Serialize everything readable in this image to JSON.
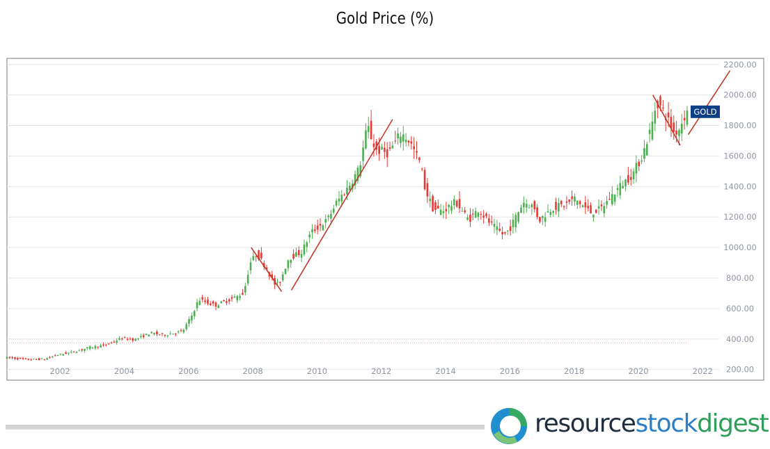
{
  "chart_data": {
    "type": "candlestick",
    "title": "Gold Price (%)",
    "y_ticks": [
      "200.00",
      "400.00",
      "600.00",
      "800.00",
      "1000.00",
      "1200.00",
      "1400.00",
      "1600.00",
      "1800.00",
      "2000.00",
      "2200.00"
    ],
    "y_tick_values": [
      200,
      400,
      600,
      800,
      1000,
      1200,
      1400,
      1600,
      1800,
      2000,
      2200
    ],
    "x_ticks": [
      "2002",
      "2004",
      "2006",
      "2008",
      "2010",
      "2012",
      "2014",
      "2016",
      "2018",
      "2020",
      "2022"
    ],
    "x_tick_values": [
      2002,
      2004,
      2006,
      2008,
      2010,
      2012,
      2014,
      2016,
      2018,
      2020,
      2022
    ],
    "xlim": [
      2000.35,
      2023.9
    ],
    "ylim": [
      130,
      2240
    ],
    "grid": true,
    "series": [
      {
        "name": "GOLD",
        "price_path": [
          [
            2000.35,
            280
          ],
          [
            2001.0,
            265
          ],
          [
            2001.6,
            268
          ],
          [
            2002.0,
            295
          ],
          [
            2002.6,
            320
          ],
          [
            2003.0,
            345
          ],
          [
            2003.5,
            360
          ],
          [
            2004.0,
            405
          ],
          [
            2004.4,
            395
          ],
          [
            2004.9,
            440
          ],
          [
            2005.3,
            425
          ],
          [
            2005.9,
            450
          ],
          [
            2006.2,
            560
          ],
          [
            2006.4,
            660
          ],
          [
            2006.9,
            620
          ],
          [
            2007.4,
            660
          ],
          [
            2007.8,
            700
          ],
          [
            2008.0,
            900
          ],
          [
            2008.2,
            960
          ],
          [
            2008.5,
            870
          ],
          [
            2008.75,
            760
          ],
          [
            2008.9,
            760
          ],
          [
            2009.2,
            930
          ],
          [
            2009.6,
            970
          ],
          [
            2009.9,
            1100
          ],
          [
            2010.4,
            1180
          ],
          [
            2010.7,
            1300
          ],
          [
            2011.0,
            1380
          ],
          [
            2011.4,
            1520
          ],
          [
            2011.65,
            1800
          ],
          [
            2011.9,
            1640
          ],
          [
            2012.3,
            1620
          ],
          [
            2012.7,
            1750
          ],
          [
            2012.95,
            1700
          ],
          [
            2013.3,
            1550
          ],
          [
            2013.45,
            1380
          ],
          [
            2013.7,
            1250
          ],
          [
            2014.0,
            1240
          ],
          [
            2014.4,
            1300
          ],
          [
            2014.8,
            1180
          ],
          [
            2015.1,
            1250
          ],
          [
            2015.5,
            1150
          ],
          [
            2015.9,
            1080
          ],
          [
            2016.1,
            1130
          ],
          [
            2016.5,
            1300
          ],
          [
            2016.8,
            1270
          ],
          [
            2017.0,
            1180
          ],
          [
            2017.4,
            1260
          ],
          [
            2017.8,
            1280
          ],
          [
            2018.1,
            1320
          ],
          [
            2018.6,
            1230
          ],
          [
            2018.9,
            1250
          ],
          [
            2019.1,
            1300
          ],
          [
            2019.5,
            1400
          ],
          [
            2019.9,
            1480
          ],
          [
            2020.2,
            1600
          ],
          [
            2020.5,
            1800
          ],
          [
            2020.65,
            1960
          ],
          [
            2020.9,
            1880
          ],
          [
            2021.2,
            1750
          ],
          [
            2021.35,
            1780
          ],
          [
            2021.55,
            1880
          ]
        ]
      }
    ],
    "reference_line": {
      "value": 375,
      "x_range": [
        2000.35,
        2021.55
      ],
      "style": "dotted",
      "color": "#d9a0a0"
    },
    "trend_lines": [
      {
        "x1": 2007.95,
        "y1": 1000,
        "x2": 2008.9,
        "y2": 710
      },
      {
        "x1": 2009.2,
        "y1": 720,
        "x2": 2012.35,
        "y2": 1840
      },
      {
        "x1": 2020.45,
        "y1": 2000,
        "x2": 2021.3,
        "y2": 1670
      },
      {
        "x1": 2021.55,
        "y1": 1740,
        "x2": 2022.85,
        "y2": 2160
      }
    ],
    "price_tag": {
      "label": "GOLD",
      "value": 1890,
      "color": "#0d3f85"
    },
    "colors": {
      "up": "#4caf50",
      "down": "#e53935",
      "trend": "#c0392b",
      "grid": "#e3e3e3",
      "tick": "#8f97a3"
    }
  },
  "branding": {
    "name_part1": "resource",
    "name_part2": "stock",
    "name_part3": "digest",
    "logo_icon": "ring-logo-icon"
  }
}
